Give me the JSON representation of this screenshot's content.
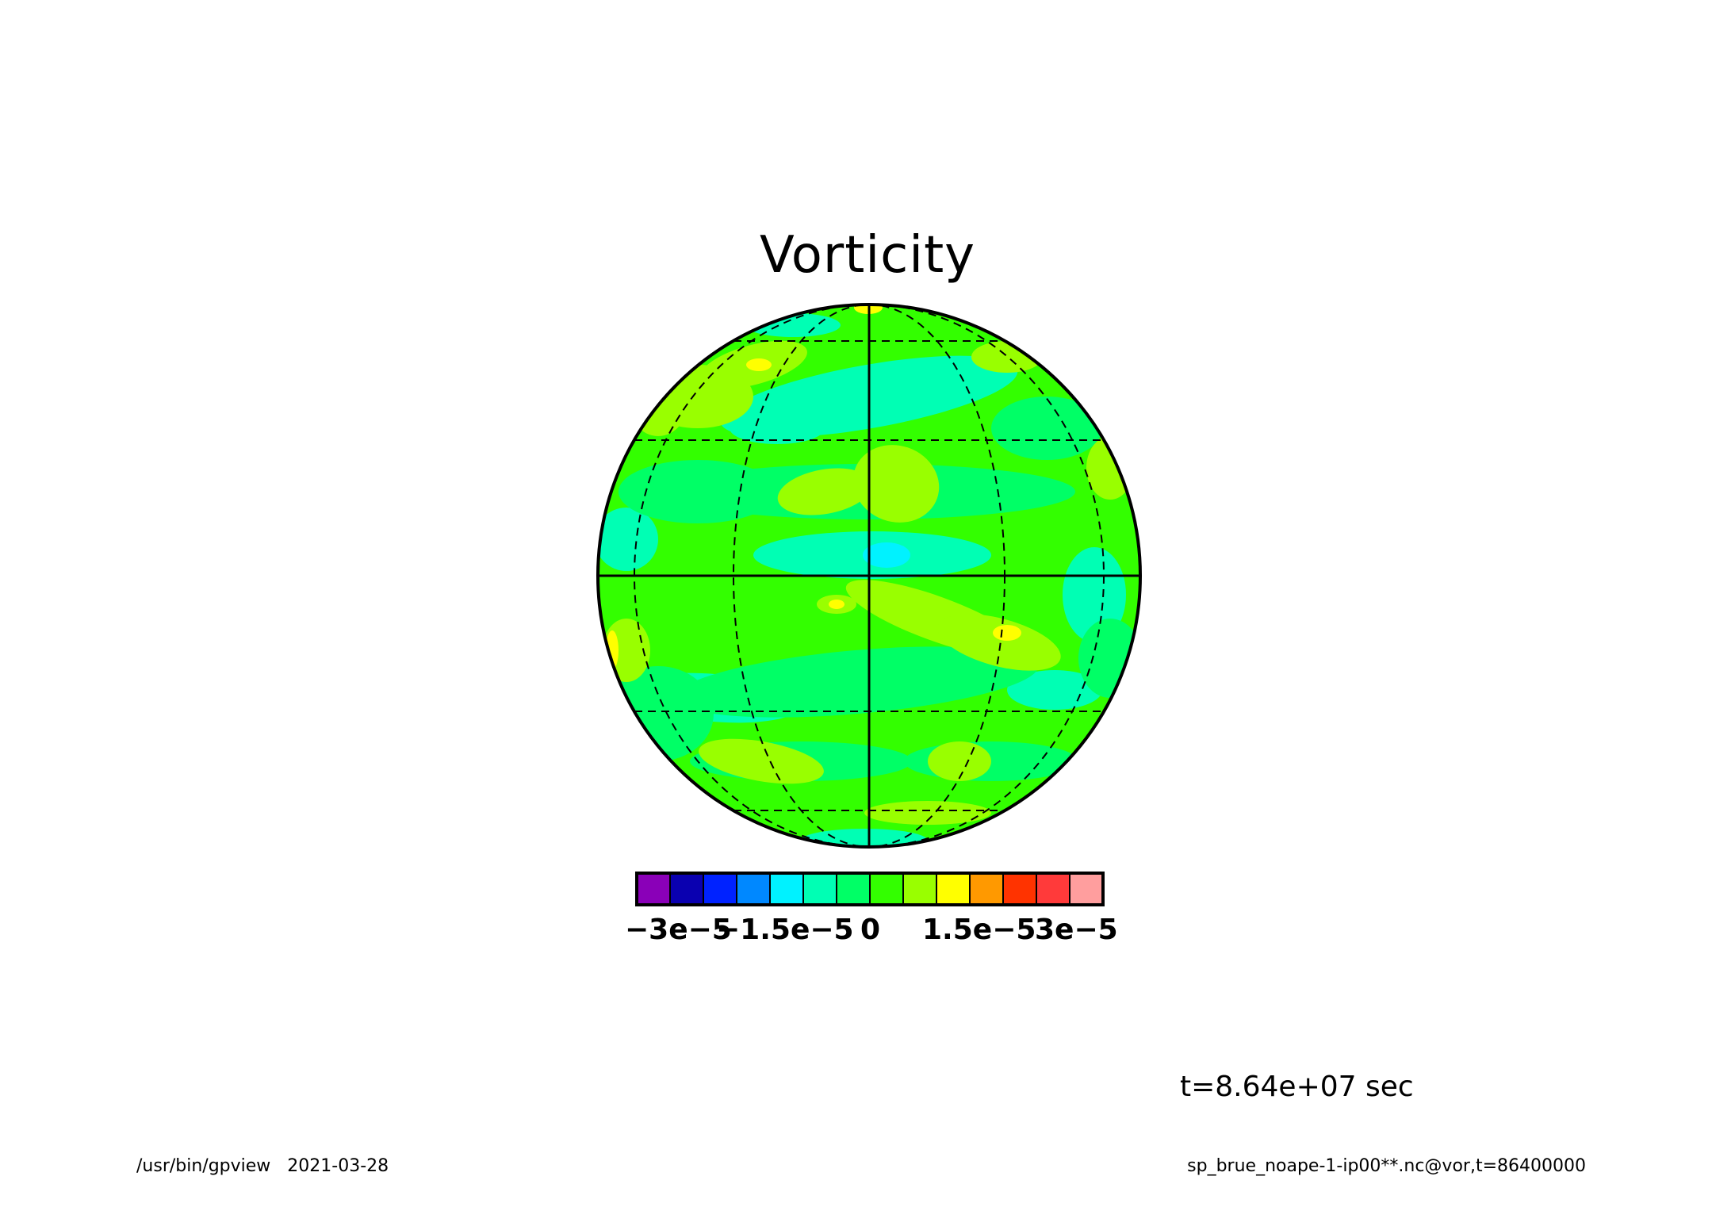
{
  "title": "Vorticity",
  "time_label": "t=8.64e+07 sec",
  "footer": {
    "program": "/usr/bin/gpview",
    "date": "2021-03-28",
    "source": "sp_brue_noape-1-ip00**.nc@vor,t=86400000"
  },
  "colorbar": {
    "colors": [
      "#8a00b8",
      "#0a00b0",
      "#0022ff",
      "#0088ff",
      "#00f2ff",
      "#00ffb4",
      "#00ff66",
      "#33ff00",
      "#99ff00",
      "#ffff00",
      "#ff9900",
      "#ff3300",
      "#ff3a3a",
      "#ff9e9e"
    ],
    "tick_labels": [
      "−3e−5",
      "−1.5e−5",
      "0",
      "1.5e−5",
      "3e−5"
    ]
  },
  "colors": {
    "base_field": "#33ff00",
    "positive_light": "#99ff00",
    "positive_peak": "#ffff00",
    "negative_light": "#00ff66",
    "negative_mid": "#00ffb4",
    "negative_peak": "#00f2ff"
  }
}
